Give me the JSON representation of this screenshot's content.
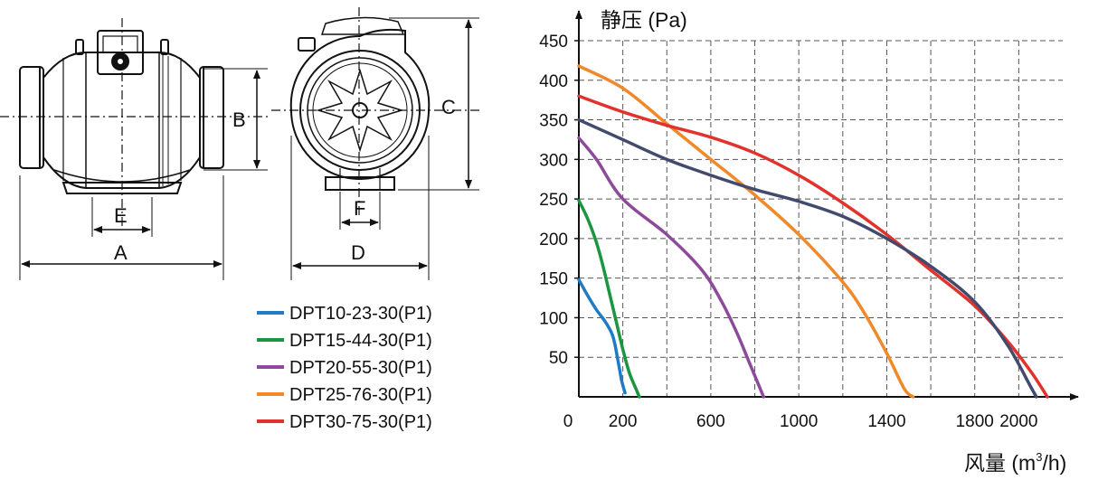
{
  "drawing": {
    "labels": {
      "a": "A",
      "b": "B",
      "c": "C",
      "d": "D",
      "e": "E",
      "f": "F"
    }
  },
  "legend": [
    {
      "label": "DPT10-23-30(P1)",
      "color": "#1f7bc4"
    },
    {
      "label": "DPT15-44-30(P1)",
      "color": "#1a9640"
    },
    {
      "label": "DPT20-55-30(P1)",
      "color": "#8e4a9a"
    },
    {
      "label": "DPT25-76-30(P1)",
      "color": "#f0892a"
    },
    {
      "label": "DPT30-75-30(P1)",
      "color": "#e1332b"
    }
  ],
  "chart_data": {
    "type": "line",
    "title": "",
    "xlabel_prefix": "风量 (m",
    "xlabel_sup": "3",
    "xlabel_suffix": "/h)",
    "ylabel": "静压 (Pa)",
    "xlim": [
      0,
      2200
    ],
    "ylim": [
      0,
      450
    ],
    "x_tick_labels": [
      {
        "value": 0,
        "text": "0"
      },
      {
        "value": 200,
        "text": "200"
      },
      {
        "value": 600,
        "text": "600"
      },
      {
        "value": 1000,
        "text": "1000"
      },
      {
        "value": 1400,
        "text": "1400"
      },
      {
        "value": 1800,
        "text": "1800"
      },
      {
        "value": 2000,
        "text": "2000"
      }
    ],
    "x_grid": [
      200,
      400,
      600,
      800,
      1000,
      1200,
      1400,
      1600,
      1800,
      2000
    ],
    "y_ticks": [
      50,
      100,
      150,
      200,
      250,
      300,
      350,
      400,
      450
    ],
    "grid": true,
    "legend_position": "left of chart",
    "series": [
      {
        "name": "DPT10-23-30(P1)",
        "color": "#1f7bc4",
        "points": [
          [
            0,
            148
          ],
          [
            40,
            128
          ],
          [
            80,
            110
          ],
          [
            120,
            95
          ],
          [
            150,
            80
          ],
          [
            165,
            65
          ],
          [
            175,
            50
          ],
          [
            185,
            35
          ],
          [
            195,
            20
          ],
          [
            210,
            5
          ]
        ]
      },
      {
        "name": "DPT15-44-30(P1)",
        "color": "#1a9640",
        "points": [
          [
            0,
            248
          ],
          [
            40,
            225
          ],
          [
            80,
            195
          ],
          [
            110,
            165
          ],
          [
            140,
            130
          ],
          [
            170,
            95
          ],
          [
            200,
            60
          ],
          [
            230,
            30
          ],
          [
            260,
            10
          ],
          [
            275,
            0
          ]
        ]
      },
      {
        "name": "DPT20-55-30(P1)",
        "color": "#8e4a9a",
        "points": [
          [
            0,
            327
          ],
          [
            80,
            300
          ],
          [
            200,
            250
          ],
          [
            400,
            205
          ],
          [
            560,
            160
          ],
          [
            650,
            120
          ],
          [
            720,
            80
          ],
          [
            780,
            40
          ],
          [
            840,
            0
          ]
        ]
      },
      {
        "name": "DPT25-76-30(P1)",
        "color": "#f0892a",
        "points": [
          [
            0,
            418
          ],
          [
            200,
            390
          ],
          [
            400,
            345
          ],
          [
            600,
            300
          ],
          [
            800,
            255
          ],
          [
            1000,
            205
          ],
          [
            1200,
            145
          ],
          [
            1300,
            105
          ],
          [
            1400,
            55
          ],
          [
            1480,
            10
          ],
          [
            1520,
            0
          ]
        ]
      },
      {
        "name": "DPT30-75-30(P1)",
        "color": "#e1332b",
        "points": [
          [
            0,
            380
          ],
          [
            200,
            360
          ],
          [
            400,
            343
          ],
          [
            600,
            328
          ],
          [
            800,
            308
          ],
          [
            1000,
            280
          ],
          [
            1200,
            245
          ],
          [
            1400,
            205
          ],
          [
            1600,
            160
          ],
          [
            1800,
            115
          ],
          [
            1950,
            70
          ],
          [
            2060,
            30
          ],
          [
            2130,
            0
          ]
        ]
      },
      {
        "name": "",
        "color": "#424a6e",
        "points": [
          [
            0,
            350
          ],
          [
            200,
            325
          ],
          [
            400,
            300
          ],
          [
            600,
            280
          ],
          [
            800,
            262
          ],
          [
            1000,
            247
          ],
          [
            1200,
            228
          ],
          [
            1400,
            200
          ],
          [
            1600,
            165
          ],
          [
            1800,
            120
          ],
          [
            1950,
            65
          ],
          [
            2050,
            15
          ],
          [
            2080,
            0
          ]
        ]
      }
    ]
  }
}
